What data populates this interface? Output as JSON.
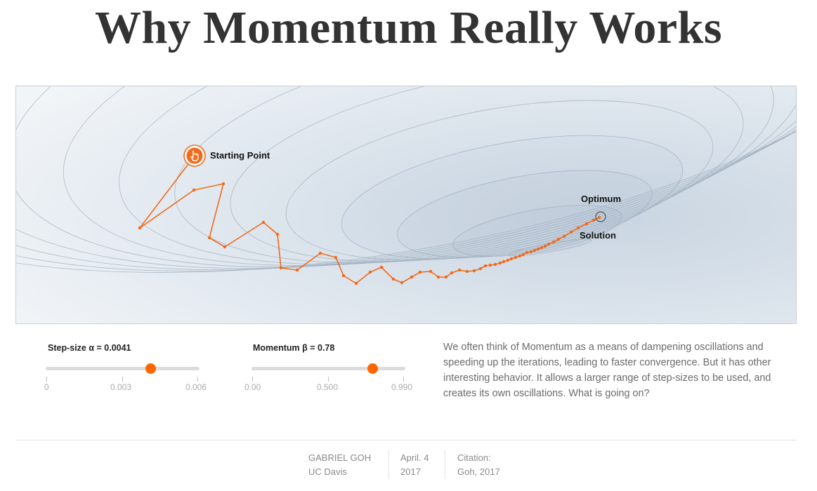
{
  "title": "Why Momentum Really Works",
  "figure": {
    "start_label": "Starting Point",
    "optimum_label": "Optimum",
    "solution_label": "Solution",
    "hand_icon": "hand-pointer-icon",
    "path_color": "#f26a1b",
    "contour_color": "#9aa9ba"
  },
  "controls": {
    "step_size": {
      "label": "Step-size α = 0.0041",
      "value": 0.0041,
      "min": 0,
      "max": 0.006,
      "ticks": [
        "0",
        "0.003",
        "0.006"
      ]
    },
    "momentum": {
      "label": "Momentum β = 0.78",
      "value": 0.78,
      "min": 0,
      "max": 0.99,
      "ticks": [
        "0.00",
        "0.500",
        "0.990"
      ]
    },
    "accent": "#ff6600"
  },
  "description": "We often think of Momentum as a means of dampening oscillations and speeding up the iterations, leading to faster convergence. But it has other interesting behavior. It allows a larger range of step-sizes to be used, and creates its own oscillations. What is going on?",
  "byline": {
    "author": "GABRIEL GOH",
    "affiliation": "UC Davis",
    "date": "April. 4",
    "year": "2017",
    "citation_label": "Citation:",
    "citation": "Goh, 2017"
  }
}
